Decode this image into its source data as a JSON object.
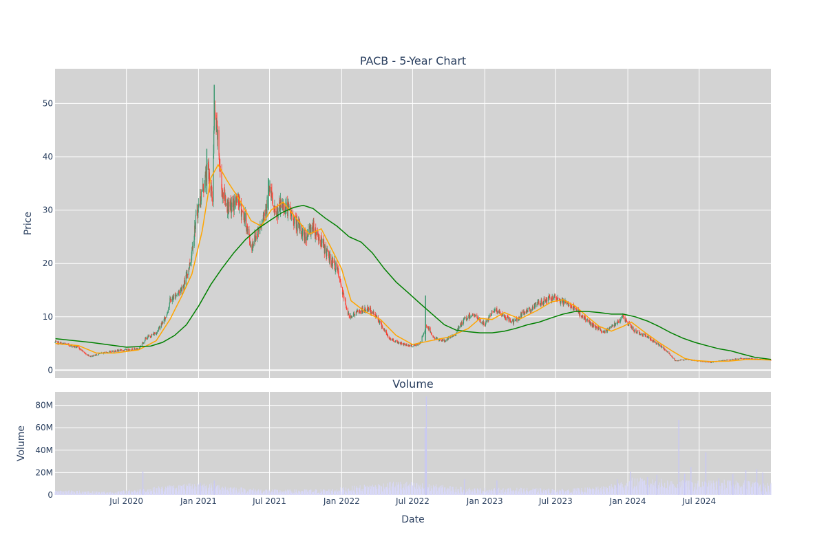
{
  "chart_data": [
    {
      "type": "candlestick",
      "title": "PACB - 5-Year Chart",
      "xlabel": "",
      "ylabel": "Price",
      "ylim": [
        -1.5,
        56.5
      ],
      "yticks": [
        0,
        10,
        20,
        30,
        40,
        50
      ],
      "x_range": [
        "2020-01-01",
        "2024-12-31"
      ],
      "x_grid_dates": [
        "2020-07-01",
        "2021-01-01",
        "2021-07-01",
        "2022-01-01",
        "2022-07-01",
        "2023-01-01",
        "2023-07-01",
        "2024-01-01",
        "2024-07-01"
      ],
      "grid": true,
      "colors": {
        "background": "#d3d3d3",
        "up": "#3d9970",
        "down": "#ff4136",
        "ma_short": "#ffa500",
        "ma_long": "#008000",
        "grid": "#ffffff"
      },
      "price_path": [
        [
          "2020-01-02",
          5.2
        ],
        [
          "2020-02-01",
          4.8
        ],
        [
          "2020-03-01",
          4.2
        ],
        [
          "2020-03-20",
          3.0
        ],
        [
          "2020-04-01",
          2.6
        ],
        [
          "2020-05-01",
          3.2
        ],
        [
          "2020-06-01",
          3.6
        ],
        [
          "2020-07-01",
          3.8
        ],
        [
          "2020-08-01",
          4.0
        ],
        [
          "2020-08-20",
          6.0
        ],
        [
          "2020-09-15",
          7.0
        ],
        [
          "2020-10-10",
          10.0
        ],
        [
          "2020-10-20",
          13.0
        ],
        [
          "2020-11-10",
          14.5
        ],
        [
          "2020-11-25",
          16.0
        ],
        [
          "2020-12-10",
          20.0
        ],
        [
          "2020-12-25",
          28.0
        ],
        [
          "2021-01-05",
          32.0
        ],
        [
          "2021-01-25",
          38.0
        ],
        [
          "2021-02-05",
          32.0
        ],
        [
          "2021-02-10",
          48.0
        ],
        [
          "2021-02-18",
          44.0
        ],
        [
          "2021-03-01",
          34.0
        ],
        [
          "2021-03-20",
          30.0
        ],
        [
          "2021-04-10",
          32.0
        ],
        [
          "2021-05-01",
          28.0
        ],
        [
          "2021-05-15",
          23.0
        ],
        [
          "2021-06-01",
          26.0
        ],
        [
          "2021-06-20",
          30.0
        ],
        [
          "2021-07-01",
          34.0
        ],
        [
          "2021-07-15",
          29.0
        ],
        [
          "2021-08-01",
          31.0
        ],
        [
          "2021-08-20",
          30.0
        ],
        [
          "2021-09-10",
          27.0
        ],
        [
          "2021-10-01",
          25.0
        ],
        [
          "2021-10-20",
          27.0
        ],
        [
          "2021-11-10",
          24.0
        ],
        [
          "2021-12-01",
          21.0
        ],
        [
          "2021-12-20",
          19.0
        ],
        [
          "2022-01-05",
          14.0
        ],
        [
          "2022-01-20",
          10.0
        ],
        [
          "2022-02-15",
          11.0
        ],
        [
          "2022-03-10",
          11.5
        ],
        [
          "2022-04-01",
          10.0
        ],
        [
          "2022-05-01",
          6.0
        ],
        [
          "2022-06-01",
          5.0
        ],
        [
          "2022-07-01",
          4.5
        ],
        [
          "2022-07-20",
          5.0
        ],
        [
          "2022-08-05",
          8.5
        ],
        [
          "2022-08-25",
          6.0
        ],
        [
          "2022-09-20",
          5.5
        ],
        [
          "2022-10-15",
          6.5
        ],
        [
          "2022-11-10",
          9.5
        ],
        [
          "2022-12-01",
          10.5
        ],
        [
          "2023-01-01",
          8.5
        ],
        [
          "2023-01-25",
          11.5
        ],
        [
          "2023-02-20",
          10.0
        ],
        [
          "2023-03-15",
          9.0
        ],
        [
          "2023-04-15",
          11.0
        ],
        [
          "2023-05-20",
          12.5
        ],
        [
          "2023-06-15",
          13.5
        ],
        [
          "2023-07-15",
          13.0
        ],
        [
          "2023-08-10",
          12.0
        ],
        [
          "2023-09-01",
          10.5
        ],
        [
          "2023-10-01",
          8.5
        ],
        [
          "2023-11-01",
          7.0
        ],
        [
          "2023-11-25",
          8.5
        ],
        [
          "2023-12-20",
          10.0
        ],
        [
          "2024-01-15",
          7.5
        ],
        [
          "2024-02-15",
          6.5
        ],
        [
          "2024-03-15",
          5.0
        ],
        [
          "2024-04-10",
          3.5
        ],
        [
          "2024-05-01",
          1.8
        ],
        [
          "2024-06-01",
          2.0
        ],
        [
          "2024-07-01",
          1.7
        ],
        [
          "2024-08-01",
          1.5
        ],
        [
          "2024-09-01",
          1.8
        ],
        [
          "2024-10-15",
          2.2
        ],
        [
          "2024-11-15",
          2.1
        ],
        [
          "2024-12-31",
          1.9
        ]
      ],
      "spikes": [
        [
          "2021-02-10",
          53.5,
          45.0
        ],
        [
          "2022-08-03",
          14.0,
          5.5
        ],
        [
          "2021-06-28",
          36.0,
          30.0
        ],
        [
          "2021-01-22",
          41.5,
          33.0
        ]
      ],
      "ma_short_path": [
        [
          "2020-01-02",
          5.0
        ],
        [
          "2020-03-01",
          4.6
        ],
        [
          "2020-04-15",
          3.2
        ],
        [
          "2020-06-01",
          3.2
        ],
        [
          "2020-08-01",
          3.8
        ],
        [
          "2020-09-15",
          5.5
        ],
        [
          "2020-10-20",
          9.5
        ],
        [
          "2020-11-20",
          14.0
        ],
        [
          "2020-12-15",
          18.0
        ],
        [
          "2021-01-10",
          26.0
        ],
        [
          "2021-02-01",
          36.0
        ],
        [
          "2021-02-20",
          38.5
        ],
        [
          "2021-03-15",
          35.5
        ],
        [
          "2021-04-15",
          32.0
        ],
        [
          "2021-05-15",
          28.0
        ],
        [
          "2021-06-10",
          27.0
        ],
        [
          "2021-07-05",
          30.0
        ],
        [
          "2021-08-05",
          31.5
        ],
        [
          "2021-09-01",
          29.0
        ],
        [
          "2021-10-10",
          25.5
        ],
        [
          "2021-11-10",
          26.5
        ],
        [
          "2021-12-01",
          23.5
        ],
        [
          "2022-01-01",
          19.0
        ],
        [
          "2022-01-25",
          13.0
        ],
        [
          "2022-03-01",
          11.0
        ],
        [
          "2022-04-10",
          9.5
        ],
        [
          "2022-05-20",
          6.5
        ],
        [
          "2022-07-01",
          4.8
        ],
        [
          "2022-08-15",
          5.5
        ],
        [
          "2022-10-01",
          6.2
        ],
        [
          "2022-11-20",
          7.8
        ],
        [
          "2022-12-20",
          9.7
        ],
        [
          "2023-01-20",
          9.5
        ],
        [
          "2023-02-20",
          10.8
        ],
        [
          "2023-04-01",
          9.6
        ],
        [
          "2023-05-15",
          11.2
        ],
        [
          "2023-06-20",
          12.8
        ],
        [
          "2023-07-20",
          13.2
        ],
        [
          "2023-08-20",
          12.0
        ],
        [
          "2023-09-20",
          10.0
        ],
        [
          "2023-10-20",
          8.2
        ],
        [
          "2023-11-20",
          7.3
        ],
        [
          "2023-12-20",
          8.2
        ],
        [
          "2024-01-10",
          9.0
        ],
        [
          "2024-02-15",
          7.0
        ],
        [
          "2024-03-20",
          5.2
        ],
        [
          "2024-04-25",
          3.5
        ],
        [
          "2024-05-25",
          2.2
        ],
        [
          "2024-06-20",
          1.8
        ],
        [
          "2024-08-01",
          1.6
        ],
        [
          "2024-09-15",
          1.7
        ],
        [
          "2024-11-01",
          2.0
        ],
        [
          "2024-12-31",
          1.9
        ]
      ],
      "ma_long_path": [
        [
          "2020-01-02",
          5.9
        ],
        [
          "2020-04-01",
          5.2
        ],
        [
          "2020-07-01",
          4.3
        ],
        [
          "2020-09-01",
          4.5
        ],
        [
          "2020-10-01",
          5.2
        ],
        [
          "2020-11-01",
          6.5
        ],
        [
          "2020-12-01",
          8.5
        ],
        [
          "2021-01-01",
          12.0
        ],
        [
          "2021-02-01",
          16.0
        ],
        [
          "2021-03-01",
          19.0
        ],
        [
          "2021-04-01",
          22.0
        ],
        [
          "2021-05-01",
          24.5
        ],
        [
          "2021-06-01",
          26.5
        ],
        [
          "2021-07-01",
          28.0
        ],
        [
          "2021-08-01",
          29.5
        ],
        [
          "2021-09-01",
          30.5
        ],
        [
          "2021-09-25",
          30.9
        ],
        [
          "2021-10-20",
          30.3
        ],
        [
          "2021-11-20",
          28.5
        ],
        [
          "2021-12-20",
          27.0
        ],
        [
          "2022-01-20",
          25.0
        ],
        [
          "2022-02-20",
          24.0
        ],
        [
          "2022-03-20",
          22.0
        ],
        [
          "2022-04-20",
          19.0
        ],
        [
          "2022-05-20",
          16.5
        ],
        [
          "2022-06-20",
          14.5
        ],
        [
          "2022-07-20",
          12.5
        ],
        [
          "2022-08-20",
          10.5
        ],
        [
          "2022-09-20",
          8.5
        ],
        [
          "2022-10-20",
          7.5
        ],
        [
          "2022-11-20",
          7.2
        ],
        [
          "2022-12-20",
          7.0
        ],
        [
          "2023-01-20",
          7.0
        ],
        [
          "2023-02-20",
          7.3
        ],
        [
          "2023-03-20",
          7.8
        ],
        [
          "2023-04-20",
          8.5
        ],
        [
          "2023-05-20",
          9.0
        ],
        [
          "2023-06-20",
          9.8
        ],
        [
          "2023-07-20",
          10.5
        ],
        [
          "2023-08-20",
          11.0
        ],
        [
          "2023-09-20",
          11.0
        ],
        [
          "2023-10-20",
          10.8
        ],
        [
          "2023-11-20",
          10.5
        ],
        [
          "2023-12-20",
          10.5
        ],
        [
          "2024-01-20",
          10.0
        ],
        [
          "2024-02-20",
          9.2
        ],
        [
          "2024-03-20",
          8.2
        ],
        [
          "2024-04-20",
          7.0
        ],
        [
          "2024-05-20",
          6.0
        ],
        [
          "2024-06-20",
          5.2
        ],
        [
          "2024-07-20",
          4.6
        ],
        [
          "2024-08-20",
          4.0
        ],
        [
          "2024-09-20",
          3.6
        ],
        [
          "2024-10-20",
          3.0
        ],
        [
          "2024-11-20",
          2.4
        ],
        [
          "2024-12-31",
          2.0
        ]
      ]
    },
    {
      "type": "bar",
      "title": "Volume",
      "xlabel": "Date",
      "ylabel": "Volume",
      "ylim": [
        0,
        92000000
      ],
      "yticks": [
        0,
        20000000,
        40000000,
        60000000,
        80000000
      ],
      "ytick_labels": [
        "0",
        "20M",
        "40M",
        "60M",
        "80M"
      ],
      "x_tick_dates": [
        "2020-07-01",
        "2021-01-01",
        "2021-07-01",
        "2022-01-01",
        "2022-07-01",
        "2023-01-01",
        "2023-07-01",
        "2024-01-01",
        "2024-07-01"
      ],
      "x_tick_labels": [
        "Jul 2020",
        "Jan 2021",
        "Jul 2021",
        "Jan 2022",
        "Jul 2022",
        "Jan 2023",
        "Jul 2023",
        "Jan 2024",
        "Jul 2024"
      ],
      "grid": true,
      "colors": {
        "background": "#d3d3d3",
        "bar": "#d8d8f8"
      },
      "volume_path": [
        [
          "2020-01-02",
          3000000
        ],
        [
          "2020-06-01",
          2000000
        ],
        [
          "2020-08-15",
          4000000
        ],
        [
          "2020-11-01",
          6000000
        ],
        [
          "2021-02-01",
          7000000
        ],
        [
          "2021-05-01",
          4000000
        ],
        [
          "2021-08-01",
          3000000
        ],
        [
          "2021-12-01",
          3500000
        ],
        [
          "2022-03-01",
          6000000
        ],
        [
          "2022-06-01",
          8000000
        ],
        [
          "2022-09-01",
          6000000
        ],
        [
          "2022-12-01",
          4000000
        ],
        [
          "2023-04-01",
          4000000
        ],
        [
          "2023-08-01",
          3500000
        ],
        [
          "2023-11-01",
          5000000
        ],
        [
          "2024-01-15",
          10000000
        ],
        [
          "2024-04-01",
          9000000
        ],
        [
          "2024-07-01",
          8000000
        ],
        [
          "2024-10-01",
          9000000
        ],
        [
          "2024-12-31",
          7000000
        ]
      ],
      "volume_spikes": [
        [
          "2020-08-12",
          21000000
        ],
        [
          "2022-08-05",
          88000000
        ],
        [
          "2022-08-02",
          60000000
        ],
        [
          "2024-05-10",
          67000000
        ],
        [
          "2024-07-18",
          38000000
        ],
        [
          "2024-01-08",
          21000000
        ],
        [
          "2024-06-10",
          25000000
        ],
        [
          "2024-10-28",
          22000000
        ],
        [
          "2024-11-25",
          23000000
        ],
        [
          "2024-12-10",
          20000000
        ],
        [
          "2022-11-10",
          14000000
        ],
        [
          "2023-02-01",
          13000000
        ],
        [
          "2021-01-05",
          11000000
        ],
        [
          "2021-02-10",
          13000000
        ],
        [
          "2023-12-05",
          14000000
        ],
        [
          "2024-02-20",
          16000000
        ],
        [
          "2024-03-15",
          18000000
        ],
        [
          "2024-05-25",
          19000000
        ],
        [
          "2024-08-20",
          15000000
        ],
        [
          "2024-09-25",
          19000000
        ]
      ]
    }
  ]
}
